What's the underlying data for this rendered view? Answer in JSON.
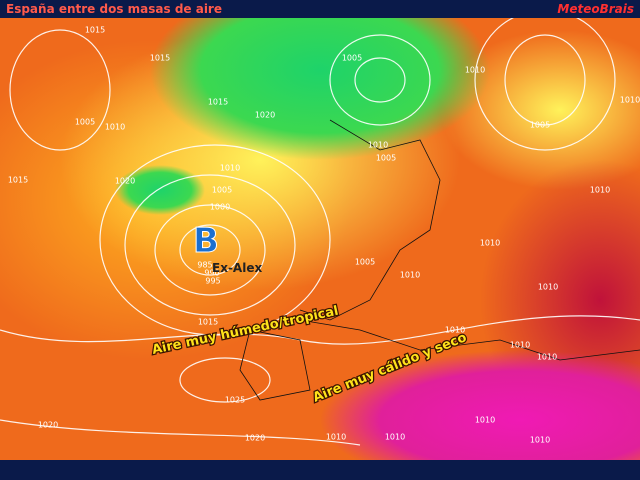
{
  "header": {
    "title": "España entre dos masas de aire",
    "logo": "MeteoBrais"
  },
  "map": {
    "low_symbol": "B",
    "low_name": "Ex-Alex",
    "annotations": [
      "Aire muy húmedo/tropical",
      "Aire muy cálido y seco"
    ],
    "isobar_labels": [
      "1015",
      "1015",
      "1010",
      "1005",
      "1020",
      "1015",
      "1015",
      "1020",
      "1010",
      "1005",
      "1005",
      "1010",
      "1005",
      "1010",
      "1010",
      "1005",
      "1000",
      "985",
      "990",
      "995",
      "1005",
      "1010",
      "1015",
      "1010",
      "1010",
      "1010",
      "1010",
      "1010",
      "1025",
      "1020",
      "1020",
      "1010",
      "1010",
      "1010",
      "1010",
      "1010"
    ]
  }
}
